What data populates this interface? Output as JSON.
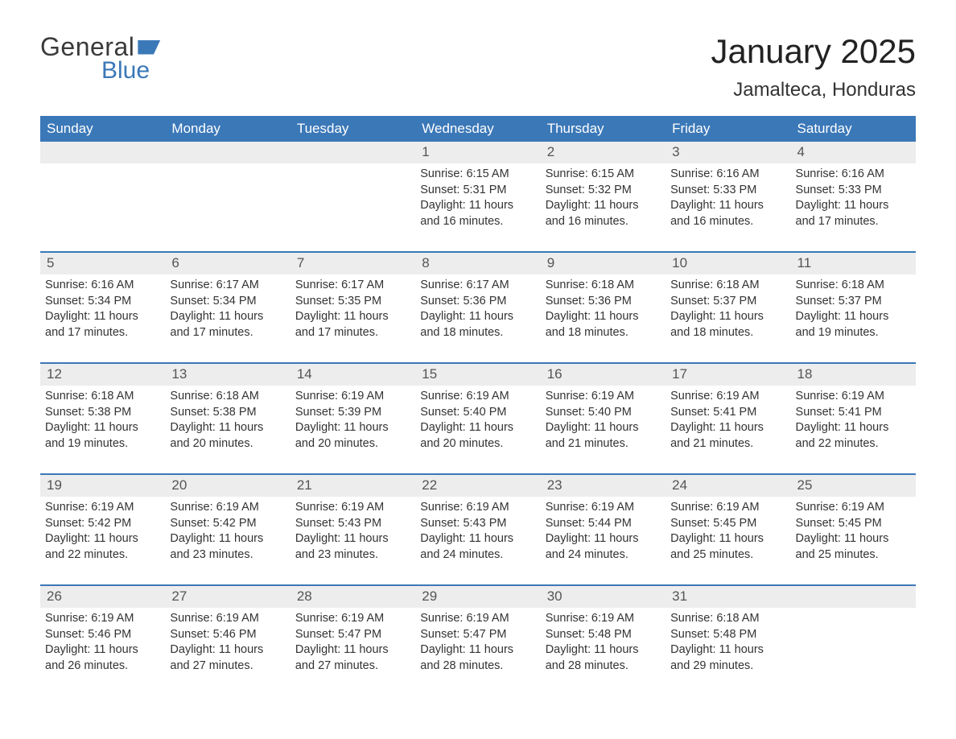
{
  "logo": {
    "word1": "General",
    "word2": "Blue"
  },
  "title": "January 2025",
  "location": "Jamalteca, Honduras",
  "colors": {
    "header_bg": "#3b78b8",
    "header_text": "#ffffff",
    "body_bg": "#ffffff",
    "daynum_bg": "#ededed",
    "text": "#333333",
    "row_border": "#3b78b8"
  },
  "fonts": {
    "title_size_pt": 42,
    "location_size_pt": 24,
    "dow_size_pt": 17,
    "body_size_pt": 14.5
  },
  "days_of_week": [
    "Sunday",
    "Monday",
    "Tuesday",
    "Wednesday",
    "Thursday",
    "Friday",
    "Saturday"
  ],
  "weeks": [
    [
      {
        "empty": true
      },
      {
        "empty": true
      },
      {
        "empty": true
      },
      {
        "day": "1",
        "sunrise": "Sunrise: 6:15 AM",
        "sunset": "Sunset: 5:31 PM",
        "daylight1": "Daylight: 11 hours",
        "daylight2": "and 16 minutes."
      },
      {
        "day": "2",
        "sunrise": "Sunrise: 6:15 AM",
        "sunset": "Sunset: 5:32 PM",
        "daylight1": "Daylight: 11 hours",
        "daylight2": "and 16 minutes."
      },
      {
        "day": "3",
        "sunrise": "Sunrise: 6:16 AM",
        "sunset": "Sunset: 5:33 PM",
        "daylight1": "Daylight: 11 hours",
        "daylight2": "and 16 minutes."
      },
      {
        "day": "4",
        "sunrise": "Sunrise: 6:16 AM",
        "sunset": "Sunset: 5:33 PM",
        "daylight1": "Daylight: 11 hours",
        "daylight2": "and 17 minutes."
      }
    ],
    [
      {
        "day": "5",
        "sunrise": "Sunrise: 6:16 AM",
        "sunset": "Sunset: 5:34 PM",
        "daylight1": "Daylight: 11 hours",
        "daylight2": "and 17 minutes."
      },
      {
        "day": "6",
        "sunrise": "Sunrise: 6:17 AM",
        "sunset": "Sunset: 5:34 PM",
        "daylight1": "Daylight: 11 hours",
        "daylight2": "and 17 minutes."
      },
      {
        "day": "7",
        "sunrise": "Sunrise: 6:17 AM",
        "sunset": "Sunset: 5:35 PM",
        "daylight1": "Daylight: 11 hours",
        "daylight2": "and 17 minutes."
      },
      {
        "day": "8",
        "sunrise": "Sunrise: 6:17 AM",
        "sunset": "Sunset: 5:36 PM",
        "daylight1": "Daylight: 11 hours",
        "daylight2": "and 18 minutes."
      },
      {
        "day": "9",
        "sunrise": "Sunrise: 6:18 AM",
        "sunset": "Sunset: 5:36 PM",
        "daylight1": "Daylight: 11 hours",
        "daylight2": "and 18 minutes."
      },
      {
        "day": "10",
        "sunrise": "Sunrise: 6:18 AM",
        "sunset": "Sunset: 5:37 PM",
        "daylight1": "Daylight: 11 hours",
        "daylight2": "and 18 minutes."
      },
      {
        "day": "11",
        "sunrise": "Sunrise: 6:18 AM",
        "sunset": "Sunset: 5:37 PM",
        "daylight1": "Daylight: 11 hours",
        "daylight2": "and 19 minutes."
      }
    ],
    [
      {
        "day": "12",
        "sunrise": "Sunrise: 6:18 AM",
        "sunset": "Sunset: 5:38 PM",
        "daylight1": "Daylight: 11 hours",
        "daylight2": "and 19 minutes."
      },
      {
        "day": "13",
        "sunrise": "Sunrise: 6:18 AM",
        "sunset": "Sunset: 5:38 PM",
        "daylight1": "Daylight: 11 hours",
        "daylight2": "and 20 minutes."
      },
      {
        "day": "14",
        "sunrise": "Sunrise: 6:19 AM",
        "sunset": "Sunset: 5:39 PM",
        "daylight1": "Daylight: 11 hours",
        "daylight2": "and 20 minutes."
      },
      {
        "day": "15",
        "sunrise": "Sunrise: 6:19 AM",
        "sunset": "Sunset: 5:40 PM",
        "daylight1": "Daylight: 11 hours",
        "daylight2": "and 20 minutes."
      },
      {
        "day": "16",
        "sunrise": "Sunrise: 6:19 AM",
        "sunset": "Sunset: 5:40 PM",
        "daylight1": "Daylight: 11 hours",
        "daylight2": "and 21 minutes."
      },
      {
        "day": "17",
        "sunrise": "Sunrise: 6:19 AM",
        "sunset": "Sunset: 5:41 PM",
        "daylight1": "Daylight: 11 hours",
        "daylight2": "and 21 minutes."
      },
      {
        "day": "18",
        "sunrise": "Sunrise: 6:19 AM",
        "sunset": "Sunset: 5:41 PM",
        "daylight1": "Daylight: 11 hours",
        "daylight2": "and 22 minutes."
      }
    ],
    [
      {
        "day": "19",
        "sunrise": "Sunrise: 6:19 AM",
        "sunset": "Sunset: 5:42 PM",
        "daylight1": "Daylight: 11 hours",
        "daylight2": "and 22 minutes."
      },
      {
        "day": "20",
        "sunrise": "Sunrise: 6:19 AM",
        "sunset": "Sunset: 5:42 PM",
        "daylight1": "Daylight: 11 hours",
        "daylight2": "and 23 minutes."
      },
      {
        "day": "21",
        "sunrise": "Sunrise: 6:19 AM",
        "sunset": "Sunset: 5:43 PM",
        "daylight1": "Daylight: 11 hours",
        "daylight2": "and 23 minutes."
      },
      {
        "day": "22",
        "sunrise": "Sunrise: 6:19 AM",
        "sunset": "Sunset: 5:43 PM",
        "daylight1": "Daylight: 11 hours",
        "daylight2": "and 24 minutes."
      },
      {
        "day": "23",
        "sunrise": "Sunrise: 6:19 AM",
        "sunset": "Sunset: 5:44 PM",
        "daylight1": "Daylight: 11 hours",
        "daylight2": "and 24 minutes."
      },
      {
        "day": "24",
        "sunrise": "Sunrise: 6:19 AM",
        "sunset": "Sunset: 5:45 PM",
        "daylight1": "Daylight: 11 hours",
        "daylight2": "and 25 minutes."
      },
      {
        "day": "25",
        "sunrise": "Sunrise: 6:19 AM",
        "sunset": "Sunset: 5:45 PM",
        "daylight1": "Daylight: 11 hours",
        "daylight2": "and 25 minutes."
      }
    ],
    [
      {
        "day": "26",
        "sunrise": "Sunrise: 6:19 AM",
        "sunset": "Sunset: 5:46 PM",
        "daylight1": "Daylight: 11 hours",
        "daylight2": "and 26 minutes."
      },
      {
        "day": "27",
        "sunrise": "Sunrise: 6:19 AM",
        "sunset": "Sunset: 5:46 PM",
        "daylight1": "Daylight: 11 hours",
        "daylight2": "and 27 minutes."
      },
      {
        "day": "28",
        "sunrise": "Sunrise: 6:19 AM",
        "sunset": "Sunset: 5:47 PM",
        "daylight1": "Daylight: 11 hours",
        "daylight2": "and 27 minutes."
      },
      {
        "day": "29",
        "sunrise": "Sunrise: 6:19 AM",
        "sunset": "Sunset: 5:47 PM",
        "daylight1": "Daylight: 11 hours",
        "daylight2": "and 28 minutes."
      },
      {
        "day": "30",
        "sunrise": "Sunrise: 6:19 AM",
        "sunset": "Sunset: 5:48 PM",
        "daylight1": "Daylight: 11 hours",
        "daylight2": "and 28 minutes."
      },
      {
        "day": "31",
        "sunrise": "Sunrise: 6:18 AM",
        "sunset": "Sunset: 5:48 PM",
        "daylight1": "Daylight: 11 hours",
        "daylight2": "and 29 minutes."
      },
      {
        "empty": true
      }
    ]
  ]
}
